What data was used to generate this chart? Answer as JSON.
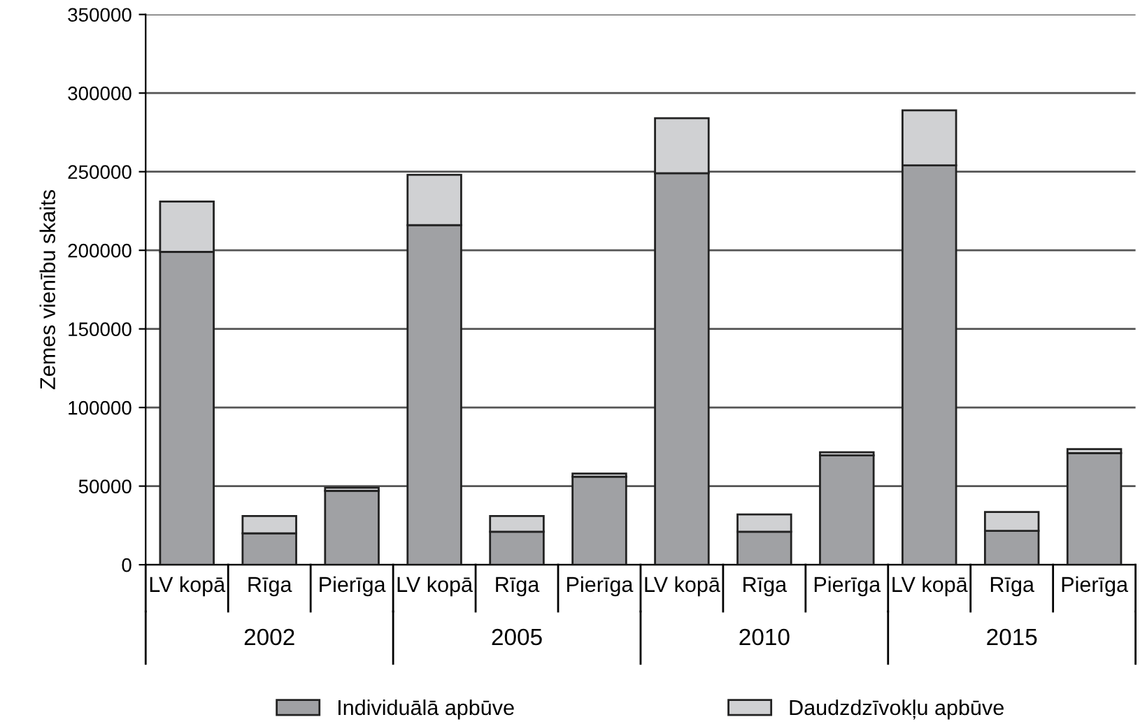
{
  "chart_data": {
    "type": "bar",
    "stacked": true,
    "ylabel": "Zemes vienību skaits",
    "categories": [
      "LV kopā",
      "Rīga",
      "Pierīga",
      "LV kopā",
      "Rīga",
      "Pierīga",
      "LV kopā",
      "Rīga",
      "Pierīga",
      "LV kopā",
      "Rīga",
      "Pierīga"
    ],
    "series": [
      {
        "name": "Individuālā apbūve",
        "color": "#a0a1a4",
        "values": [
          199000,
          20000,
          47000,
          216000,
          21000,
          56000,
          249000,
          21000,
          69500,
          254000,
          21500,
          71000
        ]
      },
      {
        "name": "Daudzdzīvokļu apbūve",
        "color": "#d0d1d3",
        "values": [
          32000,
          11000,
          2000,
          32000,
          10000,
          2000,
          35000,
          11000,
          2000,
          35000,
          12000,
          2500
        ]
      }
    ],
    "annotations": [
      "2002",
      "2005",
      "2010",
      "2015"
    ],
    "ylim": [
      0,
      350000
    ],
    "yticks": [
      0,
      50000,
      100000,
      150000,
      200000,
      250000,
      300000,
      350000
    ],
    "grid": "y",
    "legend": "bottom"
  }
}
